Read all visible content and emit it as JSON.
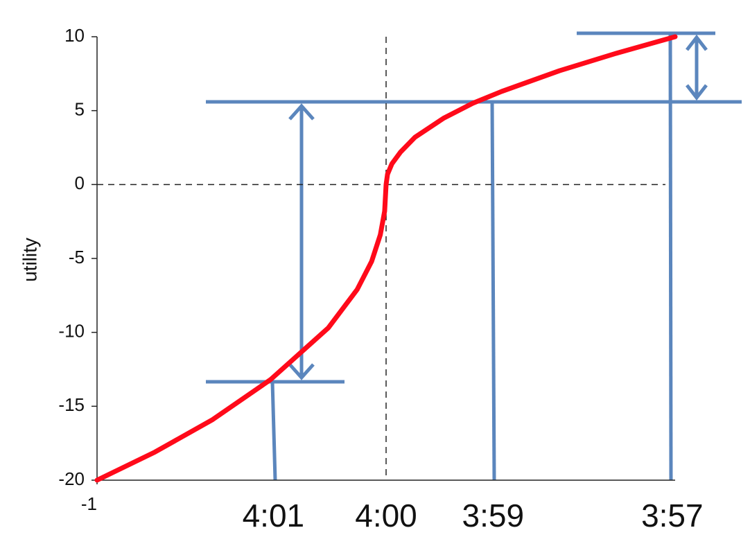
{
  "chart_data": {
    "type": "line",
    "y_label": "utility",
    "x": [
      -10,
      -8,
      -6,
      -4,
      -2,
      -1,
      -0.5,
      -0.2,
      -0.05,
      0,
      0.05,
      0.2,
      0.5,
      1,
      2,
      3,
      4,
      6,
      8,
      10
    ],
    "values": [
      -20,
      -18.1,
      -15.9,
      -13.2,
      -9.7,
      -7.1,
      -5.2,
      -3.4,
      -1.8,
      0,
      0.7,
      1.4,
      2.2,
      3.2,
      4.5,
      5.5,
      6.3,
      7.7,
      8.9,
      10
    ],
    "color": "#ff0a1a",
    "xlim": [
      -10,
      10
    ],
    "xticks": [
      {
        "value": -10,
        "label": "-1"
      }
    ],
    "ylim": [
      -20,
      10
    ],
    "yticks": [
      -20,
      -15,
      -10,
      -5,
      0,
      5,
      10
    ],
    "annotations": [
      {
        "text": "4:01",
        "x": -3.9
      },
      {
        "text": "4:00",
        "x": 0
      },
      {
        "text": "3:59",
        "x": 3.7
      },
      {
        "text": "3:57",
        "x": 9.9
      }
    ]
  }
}
